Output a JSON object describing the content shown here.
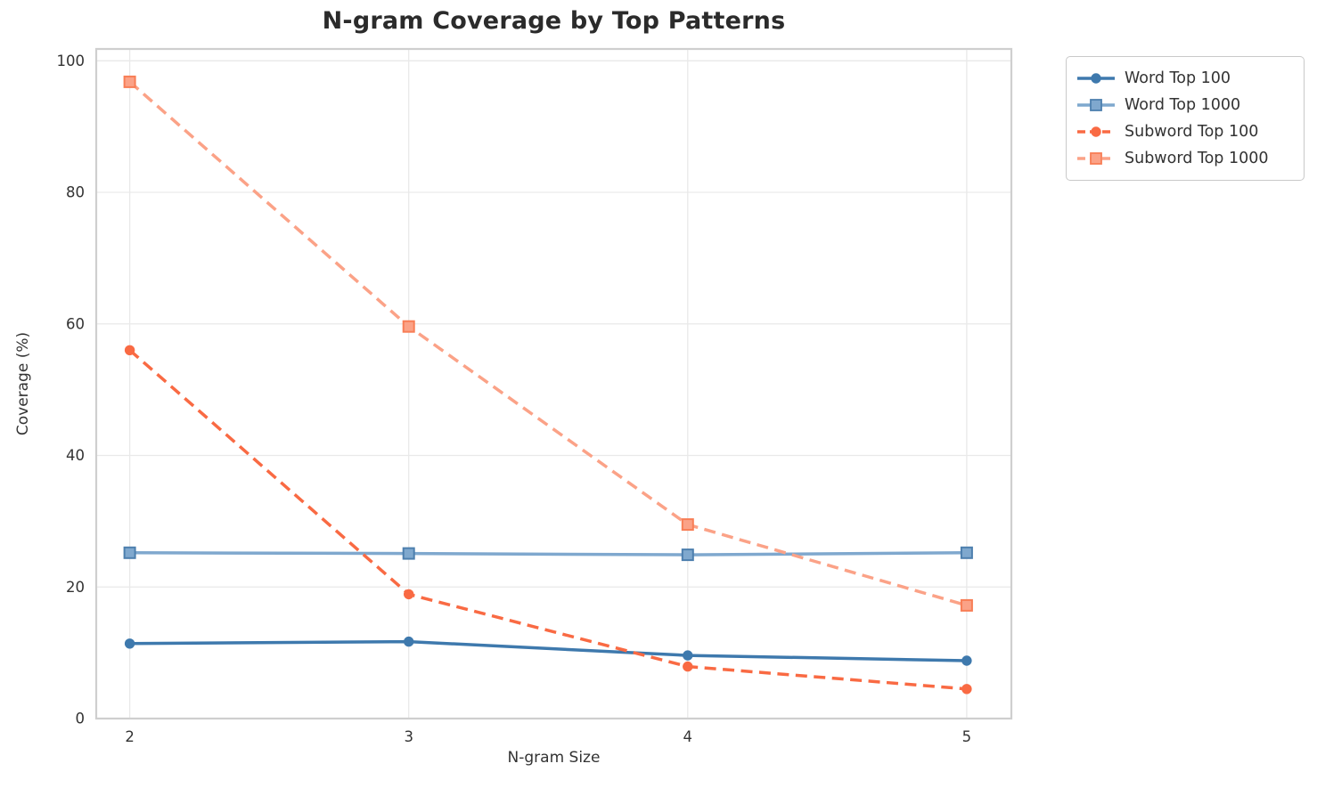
{
  "chart_data": {
    "type": "line",
    "title": "N-gram Coverage by Top Patterns",
    "xlabel": "N-gram Size",
    "ylabel": "Coverage (%)",
    "x": [
      2,
      3,
      4,
      5
    ],
    "x_tick_labels": [
      "2",
      "3",
      "4",
      "5"
    ],
    "y_ticks": [
      0,
      20,
      40,
      60,
      80,
      100
    ],
    "xlim": [
      1.88,
      5.16
    ],
    "ylim": [
      0,
      101.8
    ],
    "grid": true,
    "legend_position": "outside-upper-right",
    "colors": {
      "grid": "#e9e9e9",
      "spine": "#cfcfcf",
      "text": "#333333",
      "title": "#2b2b2b"
    },
    "series": [
      {
        "name": "Word Top 100",
        "values": [
          11.4,
          11.7,
          9.6,
          8.8
        ],
        "color": "#3e79ad",
        "edge_color": "#3e79ad",
        "linestyle": "solid",
        "marker": "circle"
      },
      {
        "name": "Word Top 1000",
        "values": [
          25.2,
          25.1,
          24.9,
          25.2
        ],
        "color": "#7fa8ce",
        "edge_color": "#4d7fae",
        "linestyle": "solid",
        "marker": "square"
      },
      {
        "name": "Subword Top 100",
        "values": [
          56.0,
          18.9,
          7.9,
          4.5
        ],
        "color": "#f96a43",
        "edge_color": "#f96a43",
        "linestyle": "dashed",
        "marker": "circle"
      },
      {
        "name": "Subword Top 1000",
        "values": [
          96.8,
          59.6,
          29.5,
          17.2
        ],
        "color": "#fba287",
        "edge_color": "#f87e56",
        "linestyle": "dashed",
        "marker": "square"
      }
    ]
  }
}
